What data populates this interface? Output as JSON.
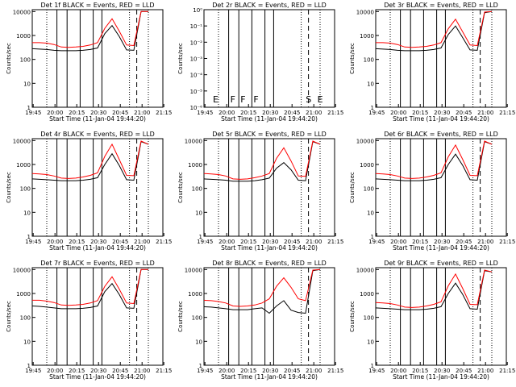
{
  "colors": {
    "events": "#000000",
    "lld": "#ff0000",
    "frame": "#000000",
    "background": "#ffffff"
  },
  "chart_data": [
    {
      "type": "line",
      "title": "Det 1f BLACK = Events, RED = LLD",
      "xlabel": "Start Time (11-Jan-04 19:44:20)",
      "ylabel": "Counts/sec",
      "xtick_labels": [
        "19:45",
        "20:00",
        "20:15",
        "20:30",
        "20:45",
        "21:00",
        "21:15"
      ],
      "ytick_labels": [
        "1",
        "10",
        "100",
        "1000",
        "10000"
      ],
      "ylim": [
        1,
        12000
      ],
      "yscale": "log",
      "x": [
        0,
        5,
        10,
        15,
        20,
        25,
        30,
        35,
        40,
        45,
        50,
        55,
        60,
        65,
        70,
        75,
        80
      ],
      "series": [
        {
          "name": "Events",
          "color": "#000000",
          "values": [
            280,
            270,
            260,
            240,
            230,
            230,
            230,
            240,
            260,
            300,
            1200,
            2600,
            900,
            250,
            240,
            10000,
            10000
          ]
        },
        {
          "name": "LLD",
          "color": "#ff0000",
          "values": [
            500,
            500,
            480,
            420,
            330,
            320,
            330,
            350,
            400,
            500,
            2000,
            5000,
            1500,
            400,
            380,
            10000,
            10000
          ]
        }
      ],
      "annotations": []
    },
    {
      "type": "line",
      "title": "Det 2r BLACK = Events, RED = LLD",
      "xlabel": "Start Time (11-Jan-04 19:44:20)",
      "ylabel": "Counts/sec",
      "xtick_labels": [
        "19:45",
        "20:00",
        "20:15",
        "20:30",
        "20:45",
        "21:00",
        "21:15"
      ],
      "ytick_labels": [
        "10⁰",
        "10⁻¹",
        "10⁻²",
        "10⁻³",
        "10⁻⁴",
        "10⁻⁵",
        "10⁻⁶"
      ],
      "ylim": [
        1e-06,
        1
      ],
      "yscale": "log",
      "x": [],
      "series": [],
      "annotations": [
        "E",
        "F",
        "F",
        "F",
        "S",
        "E"
      ]
    },
    {
      "type": "line",
      "title": "Det 3r BLACK = Events, RED = LLD",
      "xlabel": "Start Time (11-Jan-04 19:44:20)",
      "ylabel": "Counts/sec",
      "xtick_labels": [
        "19:45",
        "20:00",
        "20:15",
        "20:30",
        "20:45",
        "21:00",
        "21:15"
      ],
      "ytick_labels": [
        "1",
        "10",
        "100",
        "1000",
        "10000"
      ],
      "ylim": [
        1,
        12000
      ],
      "yscale": "log",
      "x": [
        0,
        5,
        10,
        15,
        20,
        25,
        30,
        35,
        40,
        45,
        50,
        55,
        60,
        65,
        70,
        75,
        80
      ],
      "series": [
        {
          "name": "Events",
          "color": "#000000",
          "values": [
            280,
            270,
            260,
            240,
            230,
            230,
            230,
            240,
            260,
            300,
            1100,
            2500,
            800,
            250,
            240,
            9000,
            10000
          ]
        },
        {
          "name": "LLD",
          "color": "#ff0000",
          "values": [
            500,
            500,
            480,
            420,
            330,
            320,
            330,
            350,
            400,
            500,
            1900,
            4800,
            1400,
            400,
            380,
            9500,
            10000
          ]
        }
      ],
      "annotations": []
    },
    {
      "type": "line",
      "title": "Det 4r BLACK = Events, RED = LLD",
      "xlabel": "Start Time (11-Jan-04 19:44:20)",
      "ylabel": "Counts/sec",
      "xtick_labels": [
        "19:45",
        "20:00",
        "20:15",
        "20:30",
        "20:45",
        "21:00",
        "21:15"
      ],
      "ytick_labels": [
        "1",
        "10",
        "100",
        "1000",
        "10000"
      ],
      "ylim": [
        1,
        12000
      ],
      "yscale": "log",
      "x": [
        0,
        5,
        10,
        15,
        20,
        25,
        30,
        35,
        40,
        45,
        50,
        55,
        60,
        65,
        70,
        75,
        80
      ],
      "series": [
        {
          "name": "Events",
          "color": "#000000",
          "values": [
            250,
            240,
            230,
            220,
            210,
            210,
            210,
            220,
            240,
            280,
            1000,
            2800,
            900,
            230,
            220,
            9000,
            7000
          ]
        },
        {
          "name": "LLD",
          "color": "#ff0000",
          "values": [
            420,
            400,
            380,
            330,
            270,
            260,
            270,
            300,
            350,
            450,
            2200,
            7000,
            1600,
            350,
            340,
            9500,
            7000
          ]
        }
      ],
      "annotations": []
    },
    {
      "type": "line",
      "title": "Det 5r BLACK = Events, RED = LLD",
      "xlabel": "Start Time (11-Jan-04 19:44:20)",
      "ylabel": "Counts/sec",
      "xtick_labels": [
        "19:45",
        "20:00",
        "20:15",
        "20:30",
        "20:45",
        "21:00",
        "21:15"
      ],
      "ytick_labels": [
        "1",
        "10",
        "100",
        "1000",
        "10000"
      ],
      "ylim": [
        1,
        12000
      ],
      "yscale": "log",
      "x": [
        0,
        5,
        10,
        15,
        20,
        25,
        30,
        35,
        40,
        45,
        50,
        55,
        60,
        65,
        70,
        75,
        80
      ],
      "series": [
        {
          "name": "Events",
          "color": "#000000",
          "values": [
            250,
            240,
            230,
            220,
            200,
            200,
            200,
            210,
            230,
            270,
            700,
            1200,
            600,
            220,
            210,
            9000,
            7000
          ]
        },
        {
          "name": "LLD",
          "color": "#ff0000",
          "values": [
            420,
            400,
            380,
            330,
            250,
            240,
            250,
            280,
            330,
            420,
            1800,
            5000,
            1400,
            330,
            320,
            9500,
            7000
          ]
        }
      ],
      "annotations": []
    },
    {
      "type": "line",
      "title": "Det 6r BLACK = Events, RED = LLD",
      "xlabel": "Start Time (11-Jan-04 19:44:20)",
      "ylabel": "Counts/sec",
      "xtick_labels": [
        "19:45",
        "20:00",
        "20:15",
        "20:30",
        "20:45",
        "21:00",
        "21:15"
      ],
      "ytick_labels": [
        "1",
        "10",
        "100",
        "1000",
        "10000"
      ],
      "ylim": [
        1,
        12000
      ],
      "yscale": "log",
      "x": [
        0,
        5,
        10,
        15,
        20,
        25,
        30,
        35,
        40,
        45,
        50,
        55,
        60,
        65,
        70,
        75,
        80
      ],
      "series": [
        {
          "name": "Events",
          "color": "#000000",
          "values": [
            250,
            240,
            230,
            220,
            210,
            210,
            210,
            220,
            240,
            280,
            1000,
            2700,
            900,
            230,
            220,
            9000,
            7000
          ]
        },
        {
          "name": "LLD",
          "color": "#ff0000",
          "values": [
            420,
            400,
            380,
            330,
            270,
            260,
            270,
            300,
            350,
            450,
            2100,
            6500,
            1600,
            350,
            340,
            9500,
            7000
          ]
        }
      ],
      "annotations": []
    },
    {
      "type": "line",
      "title": "Det 7r BLACK = Events, RED = LLD",
      "xlabel": "Start Time (11-Jan-04 19:44:20)",
      "ylabel": "Counts/sec",
      "xtick_labels": [
        "19:45",
        "20:00",
        "20:15",
        "20:30",
        "20:45",
        "21:00",
        "21:15"
      ],
      "ytick_labels": [
        "1",
        "10",
        "100",
        "1000",
        "10000"
      ],
      "ylim": [
        1,
        12000
      ],
      "yscale": "log",
      "x": [
        0,
        5,
        10,
        15,
        20,
        25,
        30,
        35,
        40,
        45,
        50,
        55,
        60,
        65,
        70,
        75,
        80
      ],
      "series": [
        {
          "name": "Events",
          "color": "#000000",
          "values": [
            300,
            290,
            270,
            250,
            230,
            230,
            230,
            240,
            260,
            300,
            1200,
            2600,
            900,
            250,
            240,
            10000,
            10000
          ]
        },
        {
          "name": "LLD",
          "color": "#ff0000",
          "values": [
            520,
            520,
            480,
            420,
            330,
            320,
            330,
            350,
            400,
            500,
            2000,
            5000,
            1500,
            400,
            380,
            10000,
            10000
          ]
        }
      ],
      "annotations": []
    },
    {
      "type": "line",
      "title": "Det 8r BLACK = Events, RED = LLD",
      "xlabel": "Start Time (11-Jan-04 19:44:20)",
      "ylabel": "Counts/sec",
      "xtick_labels": [
        "19:45",
        "20:00",
        "20:15",
        "20:30",
        "20:45",
        "21:00",
        "21:15"
      ],
      "ytick_labels": [
        "1",
        "10",
        "100",
        "1000",
        "10000"
      ],
      "ylim": [
        1,
        12000
      ],
      "yscale": "log",
      "x": [
        0,
        5,
        10,
        15,
        20,
        25,
        30,
        35,
        40,
        45,
        50,
        55,
        60,
        65,
        70,
        75,
        80
      ],
      "series": [
        {
          "name": "Events",
          "color": "#000000",
          "values": [
            280,
            270,
            250,
            230,
            210,
            210,
            210,
            230,
            250,
            150,
            300,
            500,
            200,
            160,
            150,
            9000,
            10000
          ]
        },
        {
          "name": "LLD",
          "color": "#ff0000",
          "values": [
            520,
            500,
            460,
            400,
            300,
            290,
            300,
            330,
            400,
            600,
            2000,
            4500,
            1800,
            600,
            500,
            9500,
            10000
          ]
        }
      ],
      "annotations": []
    },
    {
      "type": "line",
      "title": "Det 9r BLACK = Events, RED = LLD",
      "xlabel": "Start Time (11-Jan-04 19:44:20)",
      "ylabel": "Counts/sec",
      "xtick_labels": [
        "19:45",
        "20:00",
        "20:15",
        "20:30",
        "20:45",
        "21:00",
        "21:15"
      ],
      "ytick_labels": [
        "1",
        "10",
        "100",
        "1000",
        "10000"
      ],
      "ylim": [
        1,
        12000
      ],
      "yscale": "log",
      "x": [
        0,
        5,
        10,
        15,
        20,
        25,
        30,
        35,
        40,
        45,
        50,
        55,
        60,
        65,
        70,
        75,
        80
      ],
      "series": [
        {
          "name": "Events",
          "color": "#000000",
          "values": [
            250,
            240,
            230,
            220,
            210,
            210,
            210,
            220,
            240,
            280,
            1000,
            2700,
            900,
            230,
            220,
            9000,
            8000
          ]
        },
        {
          "name": "LLD",
          "color": "#ff0000",
          "values": [
            420,
            400,
            380,
            330,
            270,
            260,
            270,
            300,
            350,
            450,
            2100,
            6500,
            1600,
            350,
            340,
            9500,
            8000
          ]
        }
      ],
      "annotations": []
    }
  ]
}
